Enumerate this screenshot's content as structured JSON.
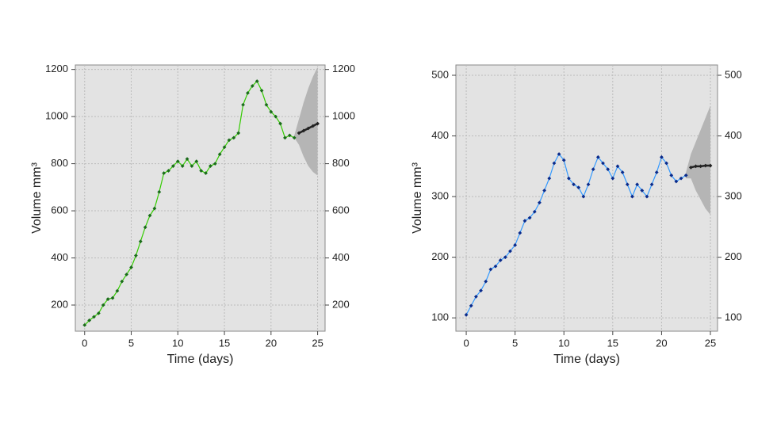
{
  "chart_data": [
    {
      "type": "line",
      "xlabel": "Time (days)",
      "ylabel": "Volume mm³",
      "xlim": [
        -1,
        25.8
      ],
      "ylim": [
        89,
        1219
      ],
      "xticks": [
        0,
        5,
        10,
        15,
        20,
        25
      ],
      "yticks": [
        200,
        400,
        600,
        800,
        1000,
        1200
      ],
      "grid": true,
      "series": [
        {
          "color": "#33cc00",
          "marker_color": "#1a6b1a",
          "x": [
            0,
            0.5,
            1,
            1.5,
            2,
            2.5,
            3,
            3.5,
            4,
            4.5,
            5,
            5.5,
            6,
            6.5,
            7,
            7.5,
            8,
            8.5,
            9,
            9.5,
            10,
            10.5,
            11,
            11.5,
            12,
            12.5,
            13,
            13.5,
            14,
            14.5,
            15,
            15.5,
            16,
            16.5,
            17,
            17.5,
            18,
            18.5,
            19,
            19.5,
            20,
            20.5,
            21,
            21.5,
            22,
            22.5
          ],
          "values": [
            115,
            135,
            150,
            165,
            200,
            225,
            230,
            260,
            300,
            330,
            360,
            410,
            470,
            530,
            580,
            610,
            680,
            760,
            770,
            790,
            810,
            790,
            820,
            790,
            810,
            770,
            760,
            790,
            800,
            840,
            870,
            900,
            910,
            930,
            1050,
            1100,
            1130,
            1150,
            1110,
            1050,
            1020,
            1000,
            970,
            910,
            920,
            910
          ]
        },
        {
          "color": "#222222",
          "marker_color": "#222222",
          "x": [
            23,
            23.5,
            24,
            24.5,
            25
          ],
          "values": [
            930,
            940,
            950,
            960,
            970
          ]
        }
      ],
      "band": {
        "color": "#b5b5b5",
        "x": [
          22.5,
          23,
          23.5,
          24,
          24.5,
          25
        ],
        "upper": [
          920,
          990,
          1060,
          1120,
          1170,
          1210
        ],
        "lower": [
          910,
          880,
          830,
          790,
          765,
          750
        ]
      }
    },
    {
      "type": "line",
      "xlabel": "Time (days)",
      "ylabel": "Volume mm³",
      "xlim": [
        -1.06,
        25.73
      ],
      "ylim": [
        78,
        517
      ],
      "xticks": [
        0,
        5,
        10,
        15,
        20,
        25
      ],
      "yticks": [
        100,
        200,
        300,
        400,
        500
      ],
      "grid": true,
      "series": [
        {
          "color": "#3399ff",
          "marker_color": "#0a2a8a",
          "x": [
            0,
            0.5,
            1,
            1.5,
            2,
            2.5,
            3,
            3.5,
            4,
            4.5,
            5,
            5.5,
            6,
            6.5,
            7,
            7.5,
            8,
            8.5,
            9,
            9.5,
            10,
            10.5,
            11,
            11.5,
            12,
            12.5,
            13,
            13.5,
            14,
            14.5,
            15,
            15.5,
            16,
            16.5,
            17,
            17.5,
            18,
            18.5,
            19,
            19.5,
            20,
            20.5,
            21,
            21.5,
            22,
            22.5
          ],
          "values": [
            105,
            120,
            135,
            145,
            160,
            180,
            185,
            195,
            200,
            210,
            220,
            240,
            260,
            265,
            275,
            290,
            310,
            330,
            355,
            370,
            360,
            330,
            320,
            315,
            300,
            320,
            345,
            365,
            355,
            345,
            330,
            350,
            340,
            320,
            300,
            320,
            310,
            300,
            320,
            340,
            365,
            355,
            335,
            325,
            330,
            335
          ]
        },
        {
          "color": "#222222",
          "marker_color": "#222222",
          "x": [
            23,
            23.5,
            24,
            24.5,
            25
          ],
          "values": [
            348,
            350,
            350,
            351,
            351
          ]
        }
      ],
      "band": {
        "color": "#b5b5b5",
        "x": [
          22.5,
          23,
          23.5,
          24,
          24.5,
          25
        ],
        "upper": [
          340,
          370,
          390,
          410,
          430,
          450
        ],
        "lower": [
          330,
          330,
          310,
          295,
          280,
          270
        ]
      }
    }
  ]
}
